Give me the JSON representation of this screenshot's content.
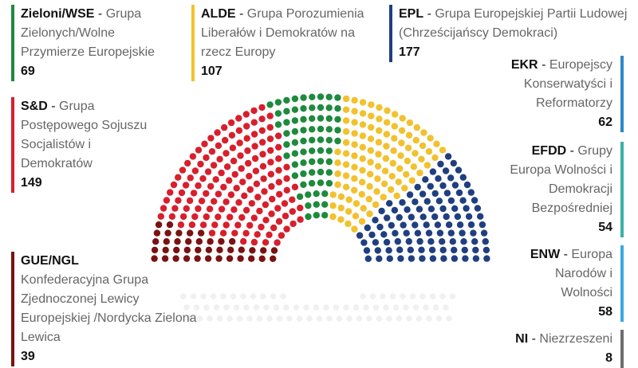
{
  "chart_data": {
    "type": "parliament",
    "title": "",
    "groups": [
      {
        "id": "gue",
        "abbr": "GUE/NGL",
        "name": "Konfederacyjna Grupa Zjednoczonej Lewicy Europejskiej /Nordycka Zielona Lewica",
        "seats": 39,
        "color": "#7a1212"
      },
      {
        "id": "sd",
        "abbr": "S&D",
        "name": "Grupa Postępowego Sojuszu Socjalistów i Demokratów",
        "seats": 149,
        "color": "#d81f2c"
      },
      {
        "id": "greens",
        "abbr": "Zieloni/WSE",
        "name": "Grupa Zielonych/Wolne Przymierze Europejskie",
        "seats": 69,
        "color": "#1e8a3e"
      },
      {
        "id": "alde",
        "abbr": "ALDE",
        "name": "Grupa Porozumienia Liberałów i Demokratów na rzecz Europy",
        "seats": 107,
        "color": "#f2c12e"
      },
      {
        "id": "epl",
        "abbr": "EPL",
        "name": "Grupa Europejskiej Partii Ludowej (Chrześcijańscy Demokraci)",
        "seats": 177,
        "color": "#1f3f80"
      },
      {
        "id": "ekr",
        "abbr": "EKR",
        "name": "Europejscy Konserwatyści i Reformatorzy",
        "seats": 62,
        "color": "#2f86c8"
      },
      {
        "id": "efdd",
        "abbr": "EFDD",
        "name": "Grupy Europa Wolności i Demokracji Bezpośredniej",
        "seats": 54,
        "color": "#3bb0a6"
      },
      {
        "id": "enw",
        "abbr": "ENW",
        "name": "Europa Narodów i Wolności",
        "seats": 58,
        "color": "#39a9e0"
      },
      {
        "id": "ni",
        "abbr": "NI",
        "name": "Niezrzeszeni",
        "seats": 8,
        "color": "#6d6d6d"
      }
    ],
    "empty_color": "#e9e9e9"
  },
  "legend": {
    "dash": "-"
  }
}
